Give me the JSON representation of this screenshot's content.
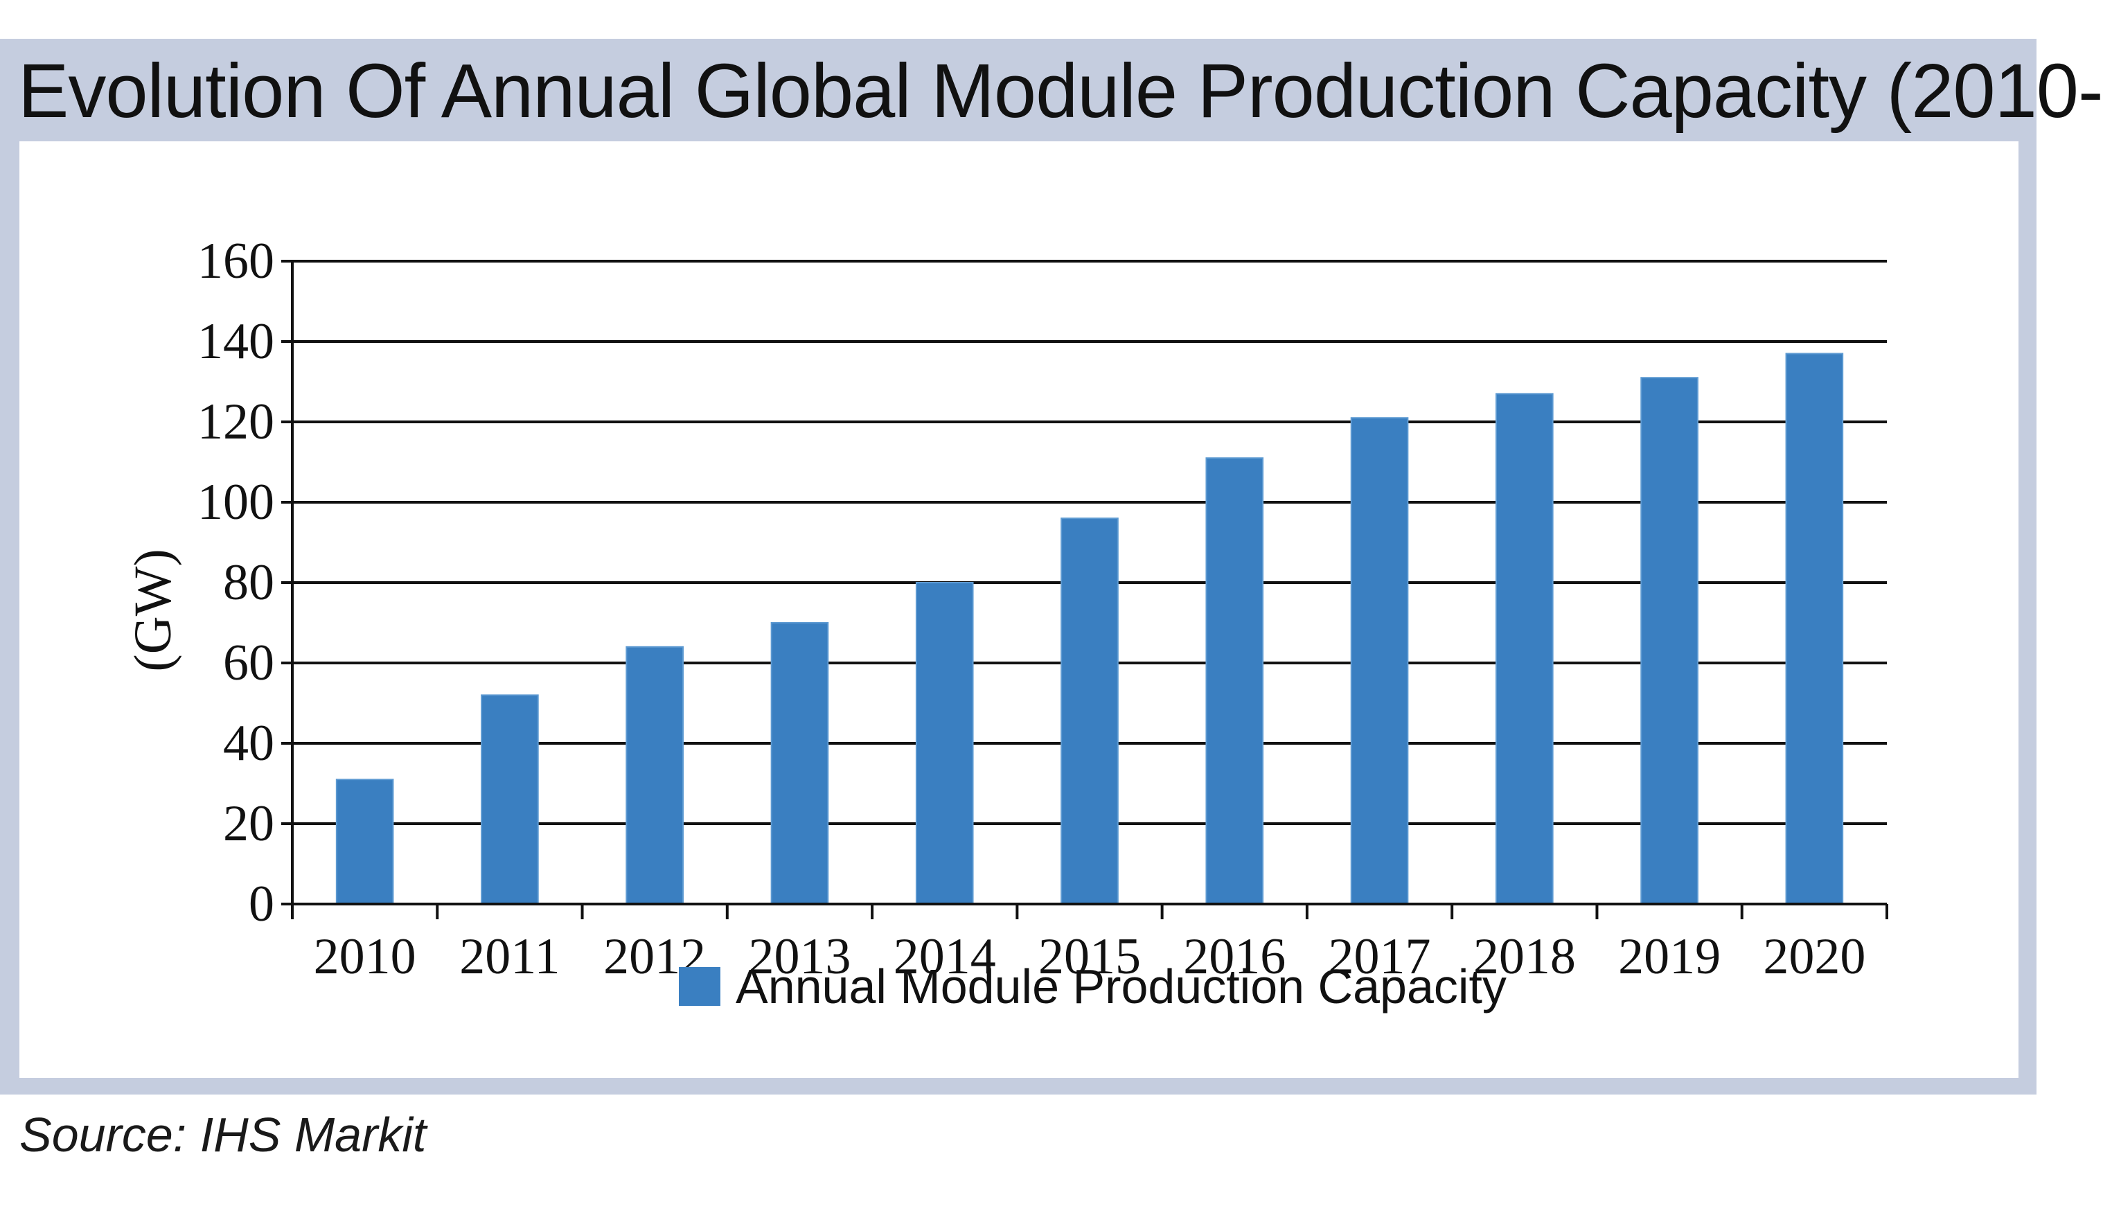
{
  "header": {
    "title": "Evolution Of Annual Global Module Production Capacity (2010-"
  },
  "footer": {
    "source": "Source: IHS Markit"
  },
  "colors": {
    "bar": "#3a7fc1",
    "frame": "#c5cddf",
    "gridline": "#111111"
  },
  "chart_data": {
    "type": "bar",
    "title": "Evolution Of Annual Global Module Production Capacity (2010-",
    "xlabel": "",
    "ylabel": "(GW)",
    "ylim": [
      0,
      160
    ],
    "yticks": [
      0,
      20,
      40,
      60,
      80,
      100,
      120,
      140,
      160
    ],
    "grid": true,
    "legend_position": "bottom",
    "categories": [
      "2010",
      "2011",
      "2012",
      "2013",
      "2014",
      "2015",
      "2016",
      "2017",
      "2018",
      "2019",
      "2020"
    ],
    "series": [
      {
        "name": "Annual Module Production Capacity",
        "values": [
          31,
          52,
          64,
          70,
          80,
          96,
          111,
          121,
          127,
          131,
          137
        ]
      }
    ]
  }
}
